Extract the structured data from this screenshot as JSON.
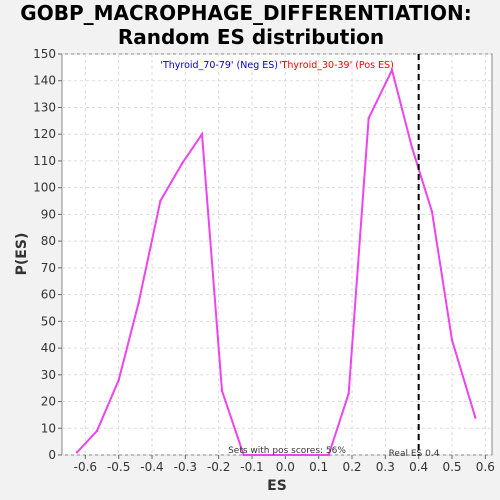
{
  "chart_data": {
    "type": "line",
    "title_line1": "GOBP_MACROPHAGE_DIFFERENTIATION:",
    "title_line2": "Random ES distribution",
    "xlabel": "ES",
    "ylabel": "P(ES)",
    "xlim": [
      -0.67,
      0.62
    ],
    "ylim": [
      0,
      150
    ],
    "xticks": [
      -0.6,
      -0.5,
      -0.4,
      -0.3,
      -0.2,
      -0.1,
      0.0,
      0.1,
      0.2,
      0.3,
      0.4,
      0.5,
      0.6
    ],
    "xtick_labels": [
      "-0.6",
      "-0.5",
      "-0.4",
      "-0.3",
      "-0.2",
      "-0.1",
      "0.0",
      "0.1",
      "0.2",
      "0.3",
      "0.4",
      "0.5",
      "0.6"
    ],
    "yticks": [
      0,
      10,
      20,
      30,
      40,
      50,
      60,
      70,
      80,
      90,
      100,
      110,
      120,
      130,
      140,
      150
    ],
    "grid": true,
    "legend_neg": "'Thyroid_70-79' (Neg ES)",
    "legend_pos": "'Thyroid_30-39' (Pos ES)",
    "legend_neg_color": "#0000cc",
    "legend_pos_color": "#ff0000",
    "line_color": "#ee44ee",
    "series": [
      {
        "x": [
          -0.625,
          -0.565,
          -0.5,
          -0.44,
          -0.375,
          -0.31,
          -0.25,
          -0.19,
          -0.125,
          -0.06,
          0.0,
          0.06,
          0.13,
          0.19,
          0.25,
          0.32,
          0.38,
          0.44,
          0.5,
          0.57
        ],
        "y": [
          1,
          9,
          28,
          57,
          95,
          109,
          120,
          24,
          0,
          0,
          0,
          0,
          0,
          23,
          126,
          144,
          115,
          91,
          43,
          14
        ]
      }
    ],
    "real_es": 0.4,
    "real_es_label": "Real ES 0.4",
    "pos_scores_label": "Sets with pos scores: 56%"
  }
}
